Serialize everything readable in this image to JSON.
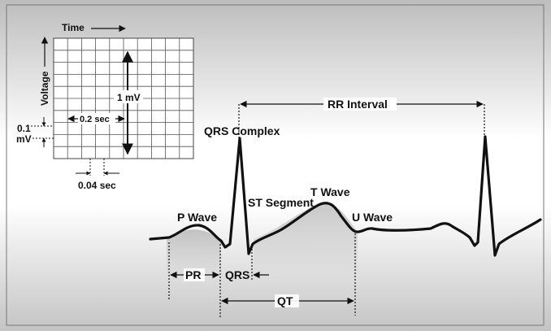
{
  "grid": {
    "time_label": "Time",
    "voltage_label": "Voltage",
    "one_mv_label": "1 mV",
    "point_two_sec_label": "0.2 sec",
    "point_one_mv_line1": "0.1",
    "point_one_mv_line2": "mV",
    "point_zero_four_sec_label": "0.04 sec"
  },
  "waveform": {
    "rr_interval_label": "RR Interval",
    "qrs_complex_label": "QRS Complex",
    "st_segment_label": "ST Segment",
    "t_wave_label": "T Wave",
    "p_wave_label": "P Wave",
    "u_wave_label": "U Wave",
    "pr_label": "PR",
    "qrs_label": "QRS",
    "qt_label": "QT"
  }
}
